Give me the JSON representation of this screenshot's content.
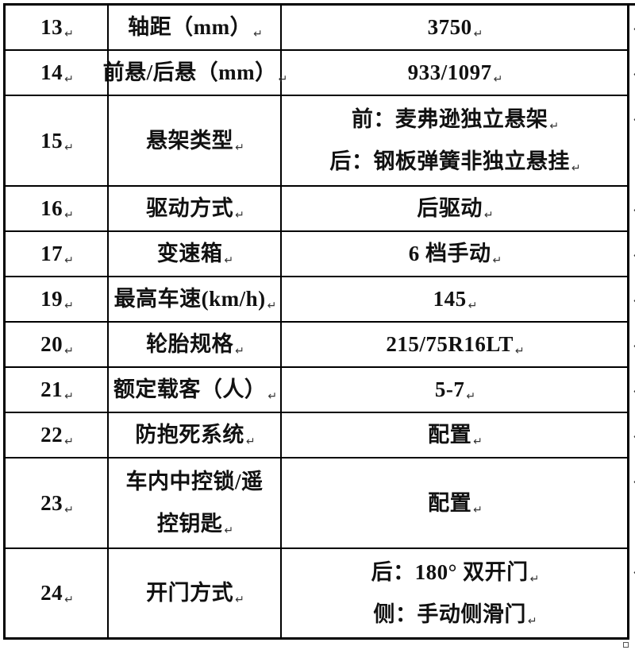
{
  "document": {
    "kind": "vehicle-specification-table",
    "marks": {
      "paragraph_mark": "↵",
      "anchor_square": "□"
    },
    "colors": {
      "background": "#ffffff",
      "border": "#000000",
      "text": "#111111",
      "formatting_mark": "#333333"
    }
  },
  "table": {
    "rows": [
      {
        "num": "13",
        "label_lines": [
          "轴距（mm）"
        ],
        "value_lines": [
          "3750"
        ]
      },
      {
        "num": "14",
        "label_lines": [
          "前悬/后悬（mm）"
        ],
        "value_lines": [
          "933/1097"
        ]
      },
      {
        "num": "15",
        "label_lines": [
          "悬架类型"
        ],
        "value_lines": [
          "前：麦弗逊独立悬架",
          "后：钢板弹簧非独立悬挂"
        ]
      },
      {
        "num": "16",
        "label_lines": [
          "驱动方式"
        ],
        "value_lines": [
          "后驱动"
        ]
      },
      {
        "num": "17",
        "label_lines": [
          "变速箱"
        ],
        "value_lines": [
          "6 档手动"
        ]
      },
      {
        "num": "19",
        "label_lines": [
          "最高车速(km/h)"
        ],
        "value_lines": [
          "145"
        ]
      },
      {
        "num": "20",
        "label_lines": [
          "轮胎规格"
        ],
        "value_lines": [
          "215/75R16LT"
        ]
      },
      {
        "num": "21",
        "label_lines": [
          "额定载客（人）"
        ],
        "value_lines": [
          "5-7"
        ]
      },
      {
        "num": "22",
        "label_lines": [
          "防抱死系统"
        ],
        "value_lines": [
          "配置"
        ]
      },
      {
        "num": "23",
        "label_lines": [
          "车内中控锁/遥",
          "控钥匙"
        ],
        "value_lines": [
          "配置"
        ]
      },
      {
        "num": "24",
        "label_lines": [
          "开门方式"
        ],
        "value_lines": [
          "后：180° 双开门",
          "侧：手动侧滑门"
        ]
      }
    ]
  }
}
